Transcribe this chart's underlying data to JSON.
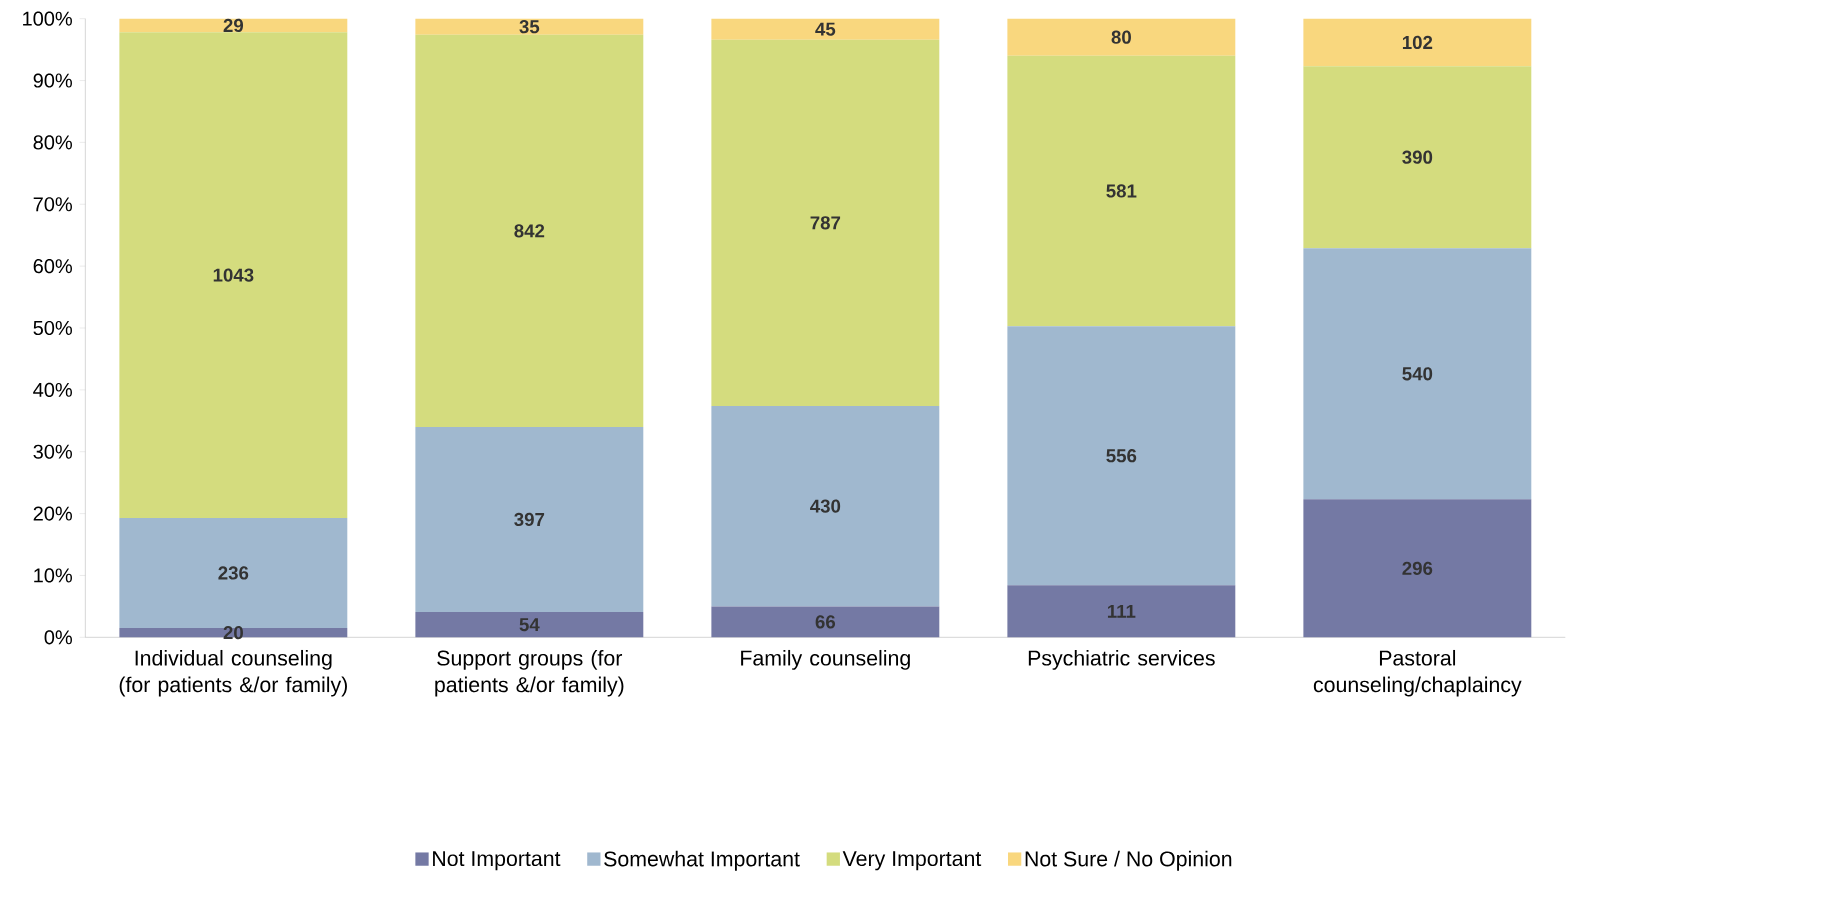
{
  "chart_data": {
    "type": "bar",
    "stacked": true,
    "legend": "bottom",
    "categories": [
      "Individual counseling (for patients &/or family)",
      "Support groups (for patients &/or family)",
      "Family counseling",
      "Psychiatric services",
      "Pastoral counseling/chaplaincy"
    ],
    "ylim": [
      0,
      100
    ],
    "yticks": [
      {
        "value": 0,
        "label": "0%"
      },
      {
        "value": 10,
        "label": "10%"
      },
      {
        "value": 20,
        "label": "20%"
      },
      {
        "value": 30,
        "label": "30%"
      },
      {
        "value": 40,
        "label": "40%"
      },
      {
        "value": 50,
        "label": "50%"
      },
      {
        "value": 60,
        "label": "60%"
      },
      {
        "value": 70,
        "label": "70%"
      },
      {
        "value": 80,
        "label": "80%"
      },
      {
        "value": 90,
        "label": "90%"
      },
      {
        "value": 100,
        "label": "100%"
      }
    ],
    "series": [
      {
        "name": "Not Important",
        "color": "#7479a4",
        "values": [
          1.5,
          4.1,
          5.0,
          8.4,
          22.3
        ]
      },
      {
        "name": "Somewhat Important",
        "color": "#a0b8cf",
        "values": [
          17.8,
          29.9,
          32.4,
          41.9,
          40.6
        ]
      },
      {
        "name": "Very Important",
        "color": "#d4dc7e",
        "values": [
          78.5,
          63.4,
          59.2,
          43.7,
          29.4
        ]
      },
      {
        "name": "Not Sure / No Opinion",
        "color": "#f9d77e",
        "values": [
          2.2,
          2.6,
          3.4,
          6.0,
          7.7
        ]
      }
    ],
    "annotations": [
      "20",
      "236",
      "1043",
      "29",
      "54",
      "397",
      "842",
      "35",
      "66",
      "430",
      "787",
      "45",
      "111",
      "556",
      "581",
      "80",
      "296",
      "540",
      "390",
      "102"
    ]
  }
}
